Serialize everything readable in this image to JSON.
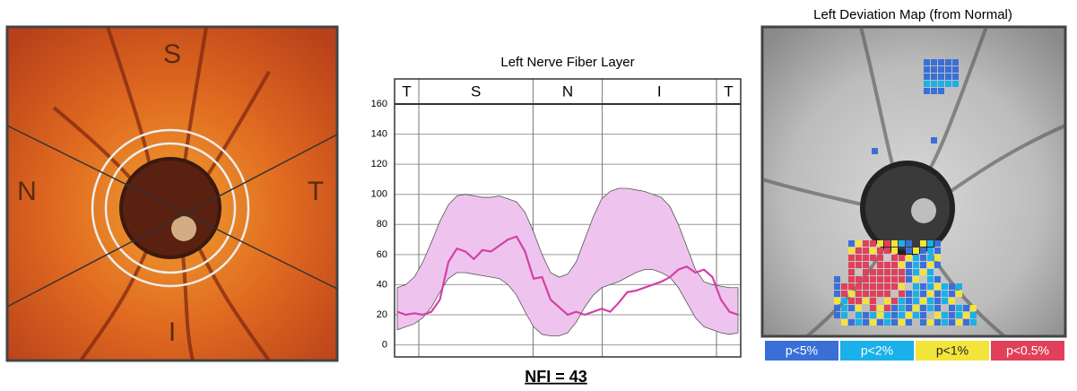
{
  "fundus": {
    "labels": {
      "superior": "S",
      "nasal": "N",
      "temporal": "T",
      "inferior": "I"
    }
  },
  "chart_data": {
    "type": "line",
    "title": "Left Nerve Fiber Layer",
    "sectors": [
      "T",
      "S",
      "N",
      "I",
      "T"
    ],
    "values": [
      22,
      20,
      21,
      20,
      22,
      30,
      55,
      64,
      62,
      57,
      63,
      62,
      66,
      70,
      72,
      62,
      44,
      45,
      30,
      25,
      20,
      22,
      20,
      22,
      24,
      22,
      28,
      35,
      36,
      38,
      40,
      42,
      45,
      50,
      52,
      48,
      50,
      45,
      30,
      22,
      20
    ],
    "normal_upper": [
      38,
      40,
      45,
      55,
      68,
      82,
      93,
      99,
      100,
      99,
      98,
      98,
      99,
      97,
      95,
      88,
      75,
      60,
      48,
      45,
      47,
      55,
      70,
      85,
      97,
      102,
      104,
      104,
      103,
      102,
      100,
      98,
      92,
      80,
      65,
      50,
      42,
      40,
      39,
      38,
      38
    ],
    "normal_lower": [
      10,
      12,
      14,
      18,
      25,
      35,
      44,
      48,
      48,
      47,
      46,
      45,
      44,
      40,
      33,
      22,
      12,
      7,
      6,
      6,
      8,
      15,
      25,
      33,
      38,
      40,
      42,
      45,
      48,
      50,
      50,
      48,
      45,
      38,
      28,
      18,
      12,
      10,
      8,
      7,
      8
    ],
    "color": "#d63fa8",
    "band_color": "#eec4ee",
    "ylim": [
      -8,
      160
    ],
    "yticks": [
      0,
      20,
      40,
      60,
      80,
      100,
      120,
      140,
      160
    ],
    "grid": true
  },
  "deviation_map": {
    "title": "Left Deviation Map (from Normal)",
    "legend": [
      {
        "label": "p<5%",
        "color": "#3a6fd8"
      },
      {
        "label": "p<2%",
        "color": "#1ab0ea"
      },
      {
        "label": "p<1%",
        "color": "#f3e43a"
      },
      {
        "label": "p<0.5%",
        "color": "#e0405a"
      }
    ]
  },
  "nfi": "NFI = 43"
}
